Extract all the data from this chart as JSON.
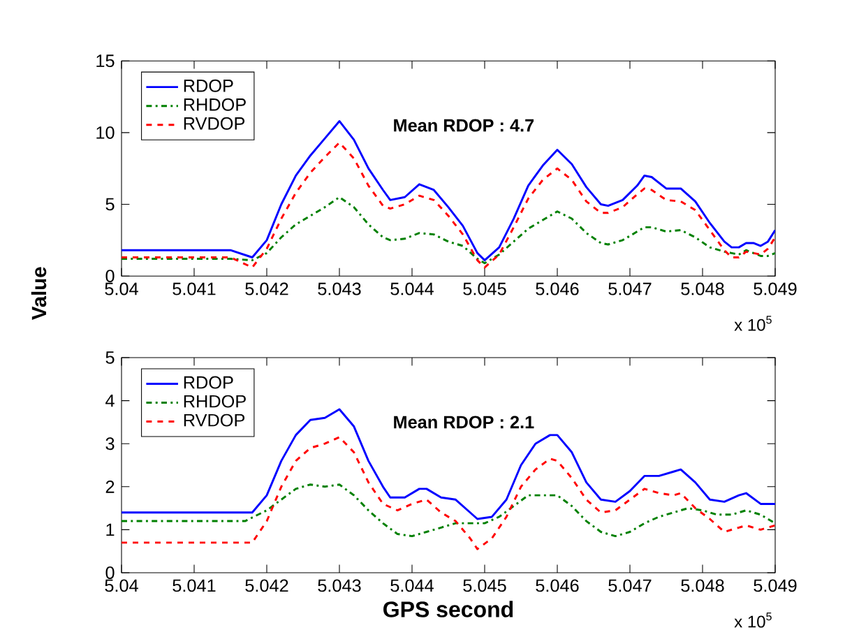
{
  "chart_data": [
    {
      "type": "line",
      "ylabel": "Value",
      "xlim": [
        5.04,
        5.049
      ],
      "xticks": [
        5.04,
        5.041,
        5.042,
        5.043,
        5.044,
        5.045,
        5.046,
        5.047,
        5.048,
        5.049
      ],
      "ylim": [
        0,
        15
      ],
      "yticks": [
        0,
        5,
        10,
        15
      ],
      "legend": "top left",
      "grid": false,
      "annotations": [
        "Mean RDOP : 4.7",
        "x 10$^{5}$"
      ],
      "series": [
        {
          "name": "RDOP",
          "color": "#0000ff",
          "line_style": "solid",
          "x": [
            5.04,
            5.0415,
            5.0418,
            5.042,
            5.0422,
            5.0424,
            5.0426,
            5.0428,
            5.043,
            5.0432,
            5.0434,
            5.0436,
            5.0437,
            5.0439,
            5.0441,
            5.0443,
            5.0445,
            5.0447,
            5.0449,
            5.045,
            5.0452,
            5.0454,
            5.0456,
            5.0458,
            5.046,
            5.0462,
            5.0464,
            5.0466,
            5.0467,
            5.0469,
            5.0471,
            5.0472,
            5.0473,
            5.0475,
            5.0477,
            5.0479,
            5.0481,
            5.0483,
            5.0484,
            5.0485,
            5.0486,
            5.0487,
            5.0488,
            5.0489,
            5.049
          ],
          "values": [
            1.8,
            1.8,
            1.3,
            2.5,
            5.0,
            7.0,
            8.4,
            9.6,
            10.8,
            9.5,
            7.5,
            6.0,
            5.3,
            5.5,
            6.4,
            6.0,
            4.8,
            3.5,
            1.6,
            1.1,
            2.0,
            4.0,
            6.3,
            7.7,
            8.8,
            7.8,
            6.2,
            5.0,
            4.9,
            5.3,
            6.3,
            7.0,
            6.9,
            6.1,
            6.1,
            5.2,
            3.7,
            2.4,
            2.0,
            2.0,
            2.3,
            2.3,
            2.1,
            2.4,
            3.2
          ]
        },
        {
          "name": "RHDOP",
          "color": "#008000",
          "line_style": "dashdot",
          "x": [
            5.04,
            5.0415,
            5.0418,
            5.042,
            5.0422,
            5.0424,
            5.0426,
            5.0428,
            5.043,
            5.0432,
            5.0434,
            5.0436,
            5.0437,
            5.0439,
            5.0441,
            5.0443,
            5.0445,
            5.0447,
            5.0449,
            5.045,
            5.0452,
            5.0454,
            5.0456,
            5.0458,
            5.046,
            5.0462,
            5.0464,
            5.0466,
            5.0467,
            5.0469,
            5.0471,
            5.0472,
            5.0473,
            5.0475,
            5.0477,
            5.0479,
            5.0481,
            5.0483,
            5.0484,
            5.0485,
            5.0486,
            5.0487,
            5.0488,
            5.0489,
            5.049
          ],
          "values": [
            1.2,
            1.2,
            1.1,
            1.6,
            2.7,
            3.6,
            4.2,
            4.8,
            5.5,
            4.8,
            3.6,
            2.7,
            2.5,
            2.6,
            3.0,
            2.9,
            2.4,
            2.1,
            1.2,
            0.9,
            1.5,
            2.4,
            3.3,
            3.9,
            4.5,
            4.0,
            3.0,
            2.3,
            2.2,
            2.5,
            3.1,
            3.4,
            3.4,
            3.1,
            3.2,
            2.7,
            2.0,
            1.7,
            1.6,
            1.5,
            1.8,
            1.6,
            1.4,
            1.4,
            1.6
          ]
        },
        {
          "name": "RVDOP",
          "color": "#ff0000",
          "line_style": "dashed",
          "x": [
            5.04,
            5.0415,
            5.0418,
            5.042,
            5.0422,
            5.0424,
            5.0426,
            5.0428,
            5.043,
            5.0432,
            5.0434,
            5.0436,
            5.0437,
            5.0439,
            5.0441,
            5.0443,
            5.0445,
            5.0447,
            5.0449,
            5.045,
            5.0452,
            5.0454,
            5.0456,
            5.0458,
            5.046,
            5.0462,
            5.0464,
            5.0466,
            5.0467,
            5.0469,
            5.0471,
            5.0472,
            5.0473,
            5.0475,
            5.0477,
            5.0479,
            5.0481,
            5.0483,
            5.0484,
            5.0485,
            5.0486,
            5.0487,
            5.0488,
            5.0489,
            5.049
          ],
          "values": [
            1.3,
            1.3,
            0.6,
            1.9,
            4.0,
            5.8,
            7.2,
            8.3,
            9.3,
            8.2,
            6.3,
            4.9,
            4.7,
            5.0,
            5.6,
            5.3,
            4.2,
            2.9,
            1.1,
            0.6,
            1.5,
            3.4,
            5.4,
            6.7,
            7.5,
            6.7,
            5.2,
            4.4,
            4.4,
            4.8,
            5.7,
            6.1,
            6.0,
            5.3,
            5.2,
            4.6,
            3.2,
            1.8,
            1.3,
            1.3,
            1.7,
            1.6,
            1.5,
            1.9,
            2.7
          ]
        }
      ]
    },
    {
      "type": "line",
      "xlabel": "GPS second",
      "xlim": [
        5.04,
        5.049
      ],
      "xticks": [
        5.04,
        5.041,
        5.042,
        5.043,
        5.044,
        5.045,
        5.046,
        5.047,
        5.048,
        5.049
      ],
      "ylim": [
        0,
        5
      ],
      "yticks": [
        0,
        1,
        2,
        3,
        4,
        5
      ],
      "legend": "top left",
      "grid": false,
      "annotations": [
        "Mean RDOP : 2.1",
        "x 10$^{5}$"
      ],
      "series": [
        {
          "name": "RDOP",
          "color": "#0000ff",
          "line_style": "solid",
          "x": [
            5.04,
            5.0418,
            5.042,
            5.0422,
            5.0424,
            5.0426,
            5.0428,
            5.043,
            5.0432,
            5.0434,
            5.0436,
            5.0437,
            5.0439,
            5.0441,
            5.0442,
            5.0444,
            5.0446,
            5.0448,
            5.0449,
            5.0451,
            5.0453,
            5.0455,
            5.0457,
            5.0459,
            5.046,
            5.0462,
            5.0464,
            5.0466,
            5.0468,
            5.047,
            5.0472,
            5.0474,
            5.0476,
            5.0477,
            5.0479,
            5.0481,
            5.0483,
            5.0485,
            5.0486,
            5.0488,
            5.0489,
            5.049
          ],
          "values": [
            1.4,
            1.4,
            1.8,
            2.6,
            3.2,
            3.55,
            3.6,
            3.8,
            3.4,
            2.6,
            2.0,
            1.75,
            1.75,
            1.95,
            1.95,
            1.75,
            1.7,
            1.4,
            1.25,
            1.3,
            1.7,
            2.5,
            3.0,
            3.2,
            3.2,
            2.8,
            2.1,
            1.7,
            1.65,
            1.9,
            2.25,
            2.25,
            2.35,
            2.4,
            2.1,
            1.7,
            1.65,
            1.8,
            1.85,
            1.6,
            1.6,
            1.6
          ]
        },
        {
          "name": "RHDOP",
          "color": "#008000",
          "line_style": "dashdot",
          "x": [
            5.04,
            5.0417,
            5.042,
            5.0422,
            5.0424,
            5.0426,
            5.0428,
            5.043,
            5.0432,
            5.0434,
            5.0436,
            5.0438,
            5.044,
            5.0442,
            5.0444,
            5.0446,
            5.0448,
            5.045,
            5.0452,
            5.0454,
            5.0456,
            5.0458,
            5.046,
            5.0462,
            5.0464,
            5.0466,
            5.0468,
            5.047,
            5.0472,
            5.0474,
            5.0476,
            5.0478,
            5.048,
            5.0482,
            5.0484,
            5.0486,
            5.0488,
            5.049
          ],
          "values": [
            1.2,
            1.2,
            1.45,
            1.7,
            1.95,
            2.05,
            2.0,
            2.05,
            1.8,
            1.45,
            1.15,
            0.9,
            0.85,
            0.95,
            1.05,
            1.15,
            1.15,
            1.15,
            1.3,
            1.55,
            1.8,
            1.8,
            1.8,
            1.55,
            1.2,
            0.95,
            0.85,
            0.95,
            1.15,
            1.3,
            1.4,
            1.5,
            1.45,
            1.35,
            1.35,
            1.45,
            1.35,
            1.15
          ]
        },
        {
          "name": "RVDOP",
          "color": "#ff0000",
          "line_style": "dashed",
          "x": [
            5.04,
            5.0418,
            5.042,
            5.0422,
            5.0424,
            5.0426,
            5.0428,
            5.043,
            5.0432,
            5.0434,
            5.0436,
            5.0438,
            5.044,
            5.0442,
            5.0444,
            5.0446,
            5.0448,
            5.0449,
            5.0451,
            5.0453,
            5.0455,
            5.0457,
            5.0459,
            5.046,
            5.0462,
            5.0464,
            5.0466,
            5.0468,
            5.047,
            5.0472,
            5.0474,
            5.0476,
            5.0477,
            5.0479,
            5.0481,
            5.0483,
            5.0485,
            5.0486,
            5.0488,
            5.049
          ],
          "values": [
            0.7,
            0.7,
            1.2,
            2.0,
            2.6,
            2.9,
            3.0,
            3.15,
            2.8,
            2.1,
            1.6,
            1.45,
            1.6,
            1.7,
            1.4,
            1.2,
            0.8,
            0.55,
            0.8,
            1.3,
            2.0,
            2.4,
            2.65,
            2.6,
            2.2,
            1.7,
            1.4,
            1.45,
            1.7,
            1.95,
            1.85,
            1.8,
            1.85,
            1.5,
            1.25,
            0.95,
            1.05,
            1.1,
            1.0,
            1.1
          ]
        }
      ]
    }
  ]
}
